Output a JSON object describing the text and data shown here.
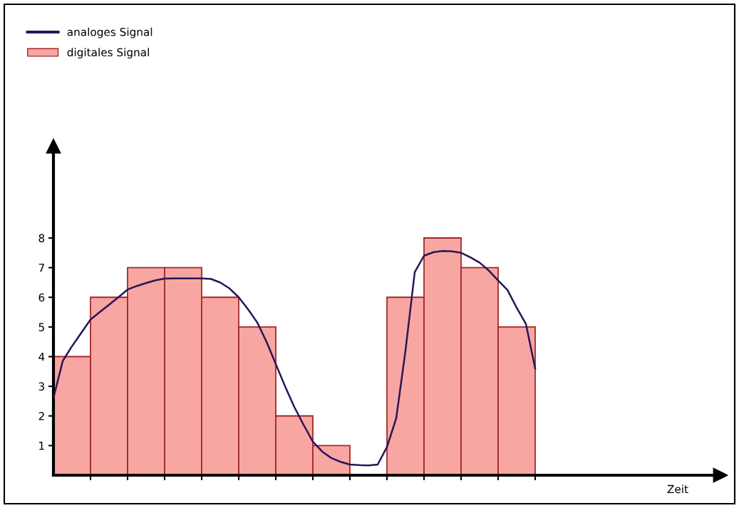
{
  "chart_data": [
    {
      "type": "bar",
      "xlabel": "Zeit",
      "tick_labels": "y",
      "legend": "top left",
      "grid": false,
      "categories": [
        null,
        null,
        null,
        null,
        null,
        null,
        null,
        null,
        null,
        null,
        null,
        null,
        null,
        null,
        null,
        null,
        null,
        null
      ],
      "ylim": [
        0,
        11.1
      ],
      "yticks": [
        1,
        2,
        3,
        4,
        5,
        6,
        7,
        8
      ],
      "series": [
        {
          "name": "digitales Signal",
          "color": "#f8a6a2",
          "values": [
            4,
            6,
            7,
            7,
            6,
            5,
            2,
            1,
            0,
            6,
            8,
            7,
            5,
            null,
            null,
            null,
            null,
            null
          ]
        }
      ]
    },
    {
      "type": "line",
      "tick_labels": false,
      "legend": "top left",
      "grid": false,
      "marker": "none",
      "line_style": "solid",
      "categories": [
        null,
        null,
        null,
        null,
        null,
        null,
        null,
        null,
        null,
        null,
        null,
        null,
        null,
        null,
        null,
        null,
        null,
        null,
        null,
        null,
        null,
        null,
        null,
        null,
        null,
        null,
        null,
        null,
        null,
        null,
        null,
        null,
        null,
        null,
        null,
        null,
        null,
        null,
        null,
        null,
        null,
        null,
        null,
        null,
        null,
        null,
        null,
        null,
        null,
        null,
        null,
        null,
        null,
        null,
        null,
        null,
        null,
        null,
        null,
        null,
        null,
        null,
        null,
        null,
        null,
        null,
        null,
        null,
        null,
        null,
        null,
        null,
        null
      ],
      "ylim": [
        0,
        11.1
      ],
      "yticks": [
        1,
        2,
        3,
        4,
        5,
        6,
        7,
        8
      ],
      "series": [
        {
          "name": "analoges Signal",
          "color": "#2a1458",
          "values": [
            2.6,
            3.85,
            4.35,
            4.8,
            5.25,
            5.5,
            5.75,
            6.0,
            6.26,
            6.38,
            6.48,
            6.57,
            6.63,
            6.64,
            6.64,
            6.64,
            6.64,
            6.62,
            6.5,
            6.3,
            6.0,
            5.6,
            5.15,
            4.5,
            3.75,
            3.0,
            2.3,
            1.7,
            1.13,
            0.8,
            0.58,
            0.45,
            0.36,
            0.34,
            0.33,
            0.36,
            0.95,
            1.92,
            4.2,
            6.85,
            7.4,
            7.52,
            7.56,
            7.55,
            7.5,
            7.35,
            7.17,
            6.9,
            6.57,
            6.25,
            5.65,
            5.1,
            3.6,
            null,
            null,
            null,
            null,
            null,
            null,
            null,
            null,
            null,
            null,
            null,
            null,
            null,
            null,
            null,
            null,
            null,
            null,
            null,
            null
          ]
        }
      ]
    }
  ]
}
